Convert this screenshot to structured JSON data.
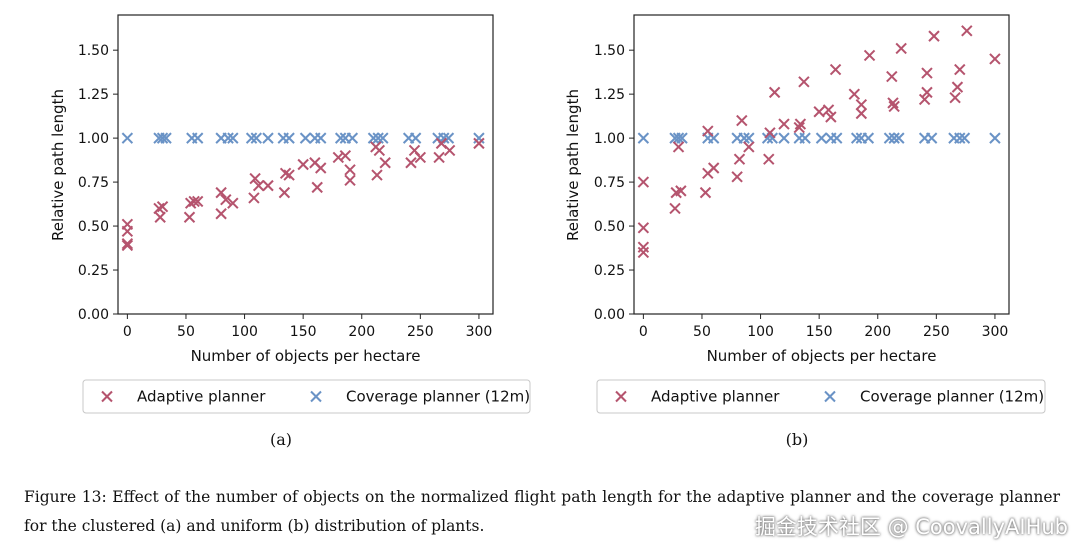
{
  "chart_data": [
    {
      "type": "scatter",
      "panel_label": "(a)",
      "xlabel": "Number of objects per hectare",
      "ylabel": "Relative path length",
      "xlim": [
        -8,
        312
      ],
      "ylim": [
        0,
        1.7
      ],
      "xticks": [
        0,
        50,
        100,
        150,
        200,
        250,
        300
      ],
      "yticks": [
        0.0,
        0.25,
        0.5,
        0.75,
        1.0,
        1.25,
        1.5
      ],
      "ytick_labels": [
        "0.00",
        "0.25",
        "0.50",
        "0.75",
        "1.00",
        "1.25",
        "1.50"
      ],
      "grid": false,
      "series": [
        {
          "name": "Adaptive planner",
          "color": "#b5546e",
          "points": [
            [
              0,
              0.51
            ],
            [
              0,
              0.47
            ],
            [
              0,
              0.4
            ],
            [
              0,
              0.39
            ],
            [
              27,
              0.6
            ],
            [
              28,
              0.55
            ],
            [
              30,
              0.61
            ],
            [
              53,
              0.55
            ],
            [
              54,
              0.63
            ],
            [
              57,
              0.64
            ],
            [
              60,
              0.64
            ],
            [
              80,
              0.57
            ],
            [
              80,
              0.69
            ],
            [
              84,
              0.65
            ],
            [
              90,
              0.63
            ],
            [
              108,
              0.66
            ],
            [
              109,
              0.77
            ],
            [
              112,
              0.73
            ],
            [
              120,
              0.73
            ],
            [
              134,
              0.69
            ],
            [
              135,
              0.8
            ],
            [
              138,
              0.79
            ],
            [
              150,
              0.85
            ],
            [
              160,
              0.86
            ],
            [
              162,
              0.72
            ],
            [
              165,
              0.83
            ],
            [
              180,
              0.89
            ],
            [
              186,
              0.9
            ],
            [
              190,
              0.82
            ],
            [
              190,
              0.76
            ],
            [
              212,
              0.95
            ],
            [
              213,
              0.79
            ],
            [
              215,
              0.93
            ],
            [
              220,
              0.86
            ],
            [
              242,
              0.86
            ],
            [
              245,
              0.93
            ],
            [
              250,
              0.89
            ],
            [
              266,
              0.89
            ],
            [
              268,
              0.97
            ],
            [
              275,
              0.93
            ],
            [
              300,
              0.97
            ]
          ]
        },
        {
          "name": "Coverage planner (12m)",
          "color": "#6a93c6",
          "points": [
            [
              0,
              1.0
            ],
            [
              27,
              1.0
            ],
            [
              30,
              1.0
            ],
            [
              33,
              1.0
            ],
            [
              55,
              1.0
            ],
            [
              60,
              1.0
            ],
            [
              80,
              1.0
            ],
            [
              86,
              1.0
            ],
            [
              90,
              1.0
            ],
            [
              106,
              1.0
            ],
            [
              110,
              1.0
            ],
            [
              120,
              1.0
            ],
            [
              133,
              1.0
            ],
            [
              138,
              1.0
            ],
            [
              152,
              1.0
            ],
            [
              160,
              1.0
            ],
            [
              165,
              1.0
            ],
            [
              182,
              1.0
            ],
            [
              186,
              1.0
            ],
            [
              192,
              1.0
            ],
            [
              210,
              1.0
            ],
            [
              214,
              1.0
            ],
            [
              218,
              1.0
            ],
            [
              240,
              1.0
            ],
            [
              246,
              1.0
            ],
            [
              265,
              1.0
            ],
            [
              270,
              1.0
            ],
            [
              274,
              1.0
            ],
            [
              300,
              1.0
            ]
          ]
        }
      ]
    },
    {
      "type": "scatter",
      "panel_label": "(b)",
      "xlabel": "Number of objects per hectare",
      "ylabel": "Relative path length",
      "xlim": [
        -8,
        312
      ],
      "ylim": [
        0,
        1.7
      ],
      "xticks": [
        0,
        50,
        100,
        150,
        200,
        250,
        300
      ],
      "yticks": [
        0.0,
        0.25,
        0.5,
        0.75,
        1.0,
        1.25,
        1.5
      ],
      "ytick_labels": [
        "0.00",
        "0.25",
        "0.50",
        "0.75",
        "1.00",
        "1.25",
        "1.50"
      ],
      "grid": false,
      "series": [
        {
          "name": "Adaptive planner",
          "color": "#b5546e",
          "points": [
            [
              0,
              0.75
            ],
            [
              0,
              0.49
            ],
            [
              0,
              0.38
            ],
            [
              0,
              0.35
            ],
            [
              27,
              0.6
            ],
            [
              28,
              0.69
            ],
            [
              30,
              0.95
            ],
            [
              32,
              0.7
            ],
            [
              53,
              0.69
            ],
            [
              55,
              1.04
            ],
            [
              55,
              0.8
            ],
            [
              60,
              0.83
            ],
            [
              80,
              0.78
            ],
            [
              82,
              0.88
            ],
            [
              84,
              1.1
            ],
            [
              90,
              0.95
            ],
            [
              107,
              0.88
            ],
            [
              108,
              1.03
            ],
            [
              112,
              1.26
            ],
            [
              120,
              1.08
            ],
            [
              133,
              1.06
            ],
            [
              134,
              1.08
            ],
            [
              137,
              1.32
            ],
            [
              150,
              1.15
            ],
            [
              158,
              1.16
            ],
            [
              160,
              1.12
            ],
            [
              164,
              1.39
            ],
            [
              180,
              1.25
            ],
            [
              186,
              1.14
            ],
            [
              186,
              1.19
            ],
            [
              193,
              1.47
            ],
            [
              212,
              1.35
            ],
            [
              213,
              1.2
            ],
            [
              214,
              1.18
            ],
            [
              220,
              1.51
            ],
            [
              240,
              1.22
            ],
            [
              242,
              1.26
            ],
            [
              242,
              1.37
            ],
            [
              248,
              1.58
            ],
            [
              266,
              1.23
            ],
            [
              268,
              1.29
            ],
            [
              270,
              1.39
            ],
            [
              276,
              1.61
            ],
            [
              300,
              1.45
            ]
          ]
        },
        {
          "name": "Coverage planner (12m)",
          "color": "#6a93c6",
          "points": [
            [
              0,
              1.0
            ],
            [
              27,
              1.0
            ],
            [
              30,
              1.0
            ],
            [
              33,
              1.0
            ],
            [
              55,
              1.0
            ],
            [
              60,
              1.0
            ],
            [
              80,
              1.0
            ],
            [
              86,
              1.0
            ],
            [
              90,
              1.0
            ],
            [
              106,
              1.0
            ],
            [
              110,
              1.0
            ],
            [
              120,
              1.0
            ],
            [
              133,
              1.0
            ],
            [
              138,
              1.0
            ],
            [
              152,
              1.0
            ],
            [
              160,
              1.0
            ],
            [
              165,
              1.0
            ],
            [
              182,
              1.0
            ],
            [
              186,
              1.0
            ],
            [
              192,
              1.0
            ],
            [
              210,
              1.0
            ],
            [
              214,
              1.0
            ],
            [
              218,
              1.0
            ],
            [
              240,
              1.0
            ],
            [
              246,
              1.0
            ],
            [
              265,
              1.0
            ],
            [
              270,
              1.0
            ],
            [
              274,
              1.0
            ],
            [
              300,
              1.0
            ]
          ]
        }
      ]
    }
  ],
  "legend": {
    "adaptive_label": "Adaptive planner",
    "coverage_label": "Coverage planner (12m)"
  },
  "caption": "Figure 13: Effect of the number of objects on the normalized flight path length for the adaptive planner and the coverage planner for the clustered (a) and uniform (b) distribution of plants.",
  "watermark": "掘金技术社区 @ CoovallyAIHub"
}
